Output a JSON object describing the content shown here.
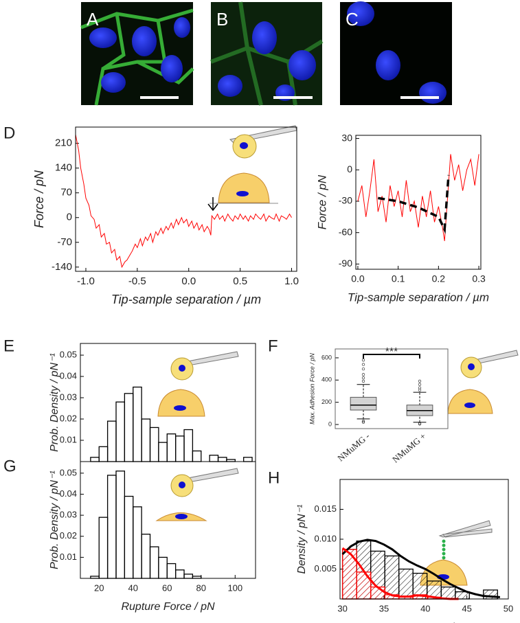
{
  "images": [
    {
      "label": "A"
    },
    {
      "label": "B"
    },
    {
      "label": "C"
    }
  ],
  "chart_data": [
    {
      "type": "line",
      "panel": "D",
      "xlabel": "Tip-sample separation / µm",
      "ylabel": "Force / pN",
      "xlim": [
        -1.1,
        1.05
      ],
      "ylim": [
        -152,
        256
      ],
      "xticks": [
        {
          "value": -1.0,
          "label": "-1.0"
        },
        -0.5,
        {
          "value": 0.0,
          "label": "0.0"
        },
        0.5,
        {
          "value": 1.0,
          "label": "1.0"
        }
      ],
      "yticks": [
        -140,
        -70,
        0,
        70,
        140,
        210
      ],
      "series": [
        {
          "color": "#ff0000",
          "x": [
            -1.1,
            -1.07,
            -1.05,
            -1.02,
            -1.0,
            -0.97,
            -0.95,
            -0.92,
            -0.9,
            -0.87,
            -0.85,
            -0.82,
            -0.8,
            -0.77,
            -0.75,
            -0.72,
            -0.7,
            -0.67,
            -0.65,
            -0.62,
            -0.6,
            -0.57,
            -0.55,
            -0.52,
            -0.5,
            -0.47,
            -0.45,
            -0.42,
            -0.4,
            -0.37,
            -0.35,
            -0.32,
            -0.3,
            -0.27,
            -0.25,
            -0.22,
            -0.2,
            -0.17,
            -0.15,
            -0.12,
            -0.1,
            -0.07,
            -0.05,
            -0.02,
            0.0,
            0.03,
            0.05,
            0.08,
            0.1,
            0.13,
            0.15,
            0.18,
            0.2,
            0.215,
            0.225,
            0.25,
            0.28,
            0.3,
            0.33,
            0.35,
            0.38,
            0.4,
            0.43,
            0.45,
            0.48,
            0.5,
            0.53,
            0.55,
            0.58,
            0.6,
            0.63,
            0.65,
            0.68,
            0.7,
            0.73,
            0.75,
            0.78,
            0.8,
            0.83,
            0.85,
            0.88,
            0.9,
            0.93,
            0.95,
            0.98,
            1.0
          ],
          "values": [
            235,
            190,
            140,
            95,
            55,
            35,
            5,
            -5,
            -30,
            -20,
            -55,
            -45,
            -75,
            -70,
            -100,
            -90,
            -120,
            -110,
            -140,
            -125,
            -120,
            -105,
            -95,
            -75,
            -85,
            -60,
            -80,
            -55,
            -65,
            -45,
            -70,
            -40,
            -50,
            -30,
            -45,
            -25,
            -35,
            -15,
            -30,
            -5,
            -20,
            0,
            -15,
            -5,
            -25,
            -10,
            -30,
            -15,
            -35,
            -20,
            -40,
            -25,
            -35,
            -50,
            5,
            -5,
            10,
            -5,
            5,
            -10,
            10,
            0,
            -10,
            5,
            -5,
            10,
            -5,
            5,
            -10,
            5,
            -5,
            10,
            0,
            -5,
            10,
            -10,
            5,
            0,
            -5,
            10,
            -10,
            5,
            0,
            -5,
            10,
            0
          ]
        }
      ]
    },
    {
      "type": "line",
      "panel": "D",
      "xlabel": "Tip-sample separation / µm",
      "ylabel": "Force / pN",
      "xlim": [
        -0.005,
        0.305
      ],
      "ylim": [
        -95,
        33
      ],
      "xticks": [
        {
          "value": 0.0,
          "label": "0.0"
        },
        0.1,
        0.2,
        0.3
      ],
      "yticks": [
        -90,
        -60,
        -30,
        0,
        30
      ],
      "series": [
        {
          "color": "#ff0000",
          "x": [
            0.0,
            0.01,
            0.02,
            0.03,
            0.04,
            0.05,
            0.06,
            0.07,
            0.08,
            0.09,
            0.1,
            0.11,
            0.12,
            0.13,
            0.14,
            0.15,
            0.16,
            0.17,
            0.18,
            0.19,
            0.2,
            0.21,
            0.215,
            0.22,
            0.23,
            0.24,
            0.25,
            0.26,
            0.27,
            0.28,
            0.29,
            0.3
          ],
          "values": [
            -30,
            -15,
            -45,
            -20,
            10,
            -40,
            -25,
            -50,
            -15,
            -35,
            -20,
            -45,
            -10,
            -40,
            -30,
            -55,
            -25,
            -45,
            -20,
            -50,
            -35,
            -55,
            -68,
            -40,
            15,
            -10,
            5,
            -20,
            0,
            10,
            -15,
            15
          ]
        },
        {
          "color": "#000000",
          "style": "dashed",
          "x": [
            0.05,
            0.1,
            0.15,
            0.2,
            0.215,
            0.225
          ],
          "values": [
            -27,
            -30,
            -36,
            -45,
            -57,
            -5
          ]
        }
      ]
    },
    {
      "type": "histogram",
      "panel": "E",
      "ylabel": "Prob. Density / pN⁻¹",
      "xlim": [
        9,
        112
      ],
      "ylim": [
        0,
        0.0555
      ],
      "yticks": [
        0.01,
        0.02,
        0.03,
        0.04,
        0.05
      ],
      "bins": [
        15,
        20,
        25,
        30,
        35,
        40,
        45,
        50,
        55,
        60,
        65,
        70,
        75,
        80,
        85,
        90,
        95,
        100,
        105,
        110
      ],
      "series": [
        {
          "color": "#000000",
          "values": [
            0.002,
            0.007,
            0.019,
            0.028,
            0.032,
            0.035,
            0.02,
            0.016,
            0.009,
            0.013,
            0.012,
            0.015,
            0.005,
            0,
            0.003,
            0.002,
            0.001,
            0,
            0.002
          ]
        }
      ]
    },
    {
      "type": "histogram",
      "panel": "G",
      "ylabel": "Prob. Density / pN⁻¹",
      "xlabel": "Rupture Force / pN",
      "xlim": [
        9,
        112
      ],
      "ylim": [
        0,
        0.0555
      ],
      "xticks": [
        20,
        40,
        60,
        80,
        100
      ],
      "yticks": [
        0.01,
        0.02,
        0.03,
        0.04,
        0.05
      ],
      "bins": [
        15,
        20,
        25,
        30,
        35,
        40,
        45,
        50,
        55,
        60,
        65,
        70,
        75,
        80
      ],
      "series": [
        {
          "color": "#000000",
          "values": [
            0.001,
            0.029,
            0.049,
            0.051,
            0.039,
            0.034,
            0.021,
            0.015,
            0.01,
            0.007,
            0.004,
            0.002,
            0.001
          ]
        }
      ]
    },
    {
      "type": "box",
      "panel": "F",
      "ylabel": "Max. Adhesion Force / pN",
      "annotation": "***",
      "ylim": [
        -37,
        680
      ],
      "yticks": [
        0,
        200,
        400,
        600
      ],
      "categories": [
        "NMuMG -",
        "NMuMG +"
      ],
      "boxes": [
        {
          "min": 50,
          "q1": 130,
          "median": 175,
          "q3": 245,
          "max": 360,
          "outliers": [
            20,
            30,
            390,
            420,
            450,
            500,
            540,
            580
          ]
        },
        {
          "min": 20,
          "q1": 80,
          "median": 125,
          "q3": 175,
          "max": 290,
          "outliers": [
            5,
            10,
            310,
            330,
            360,
            390
          ]
        }
      ]
    },
    {
      "type": "histogram",
      "panel": "H",
      "ylabel": "Density / pN⁻¹",
      "xlabel": "Rupture Force / pN",
      "xlim": [
        29.7,
        50
      ],
      "ylim": [
        0,
        0.02
      ],
      "xticks": [
        30,
        35,
        40,
        45,
        50
      ],
      "yticks": [
        0.005,
        {
          "value": 0.01,
          "label": "0.010"
        },
        0.015
      ],
      "bins": [
        30,
        31.7,
        33.4,
        35.1,
        36.8,
        38.5,
        40.2,
        41.9,
        43.6,
        45.3,
        47.0,
        48.7
      ],
      "series": [
        {
          "color": "#000000",
          "hatch": true,
          "values": [
            0.0083,
            0.0097,
            0.008,
            0.0072,
            0.005,
            0.0043,
            0.003,
            0.002,
            0.0012,
            0,
            0.0015
          ]
        },
        {
          "color": "#ff0000",
          "hatch": true,
          "values": [
            0.0083,
            0.0045,
            0.002,
            0.0007,
            0.0003,
            0.0007,
            0.0003,
            0,
            0,
            0,
            0
          ]
        }
      ],
      "lines": [
        {
          "color": "#000000",
          "x": [
            30,
            31,
            32,
            33,
            34,
            35,
            36,
            37,
            38,
            39,
            40,
            41,
            42,
            43,
            44,
            45,
            46,
            47,
            48,
            49
          ],
          "values": [
            0.0075,
            0.0088,
            0.0096,
            0.0099,
            0.0097,
            0.0091,
            0.0083,
            0.0072,
            0.0063,
            0.0056,
            0.005,
            0.0042,
            0.0033,
            0.0025,
            0.0018,
            0.0012,
            0.0008,
            0.0005,
            0.0004,
            0.0003
          ]
        },
        {
          "color": "#ff0000",
          "x": [
            30,
            31,
            32,
            33,
            34,
            35,
            36,
            37,
            38,
            39,
            40,
            41,
            42,
            43,
            44
          ],
          "values": [
            0.0085,
            0.0075,
            0.0058,
            0.0038,
            0.0022,
            0.0012,
            0.0006,
            0.0004,
            0.0004,
            0.0006,
            0.0005,
            0.0003,
            0.0001,
            0,
            0
          ]
        }
      ]
    }
  ]
}
